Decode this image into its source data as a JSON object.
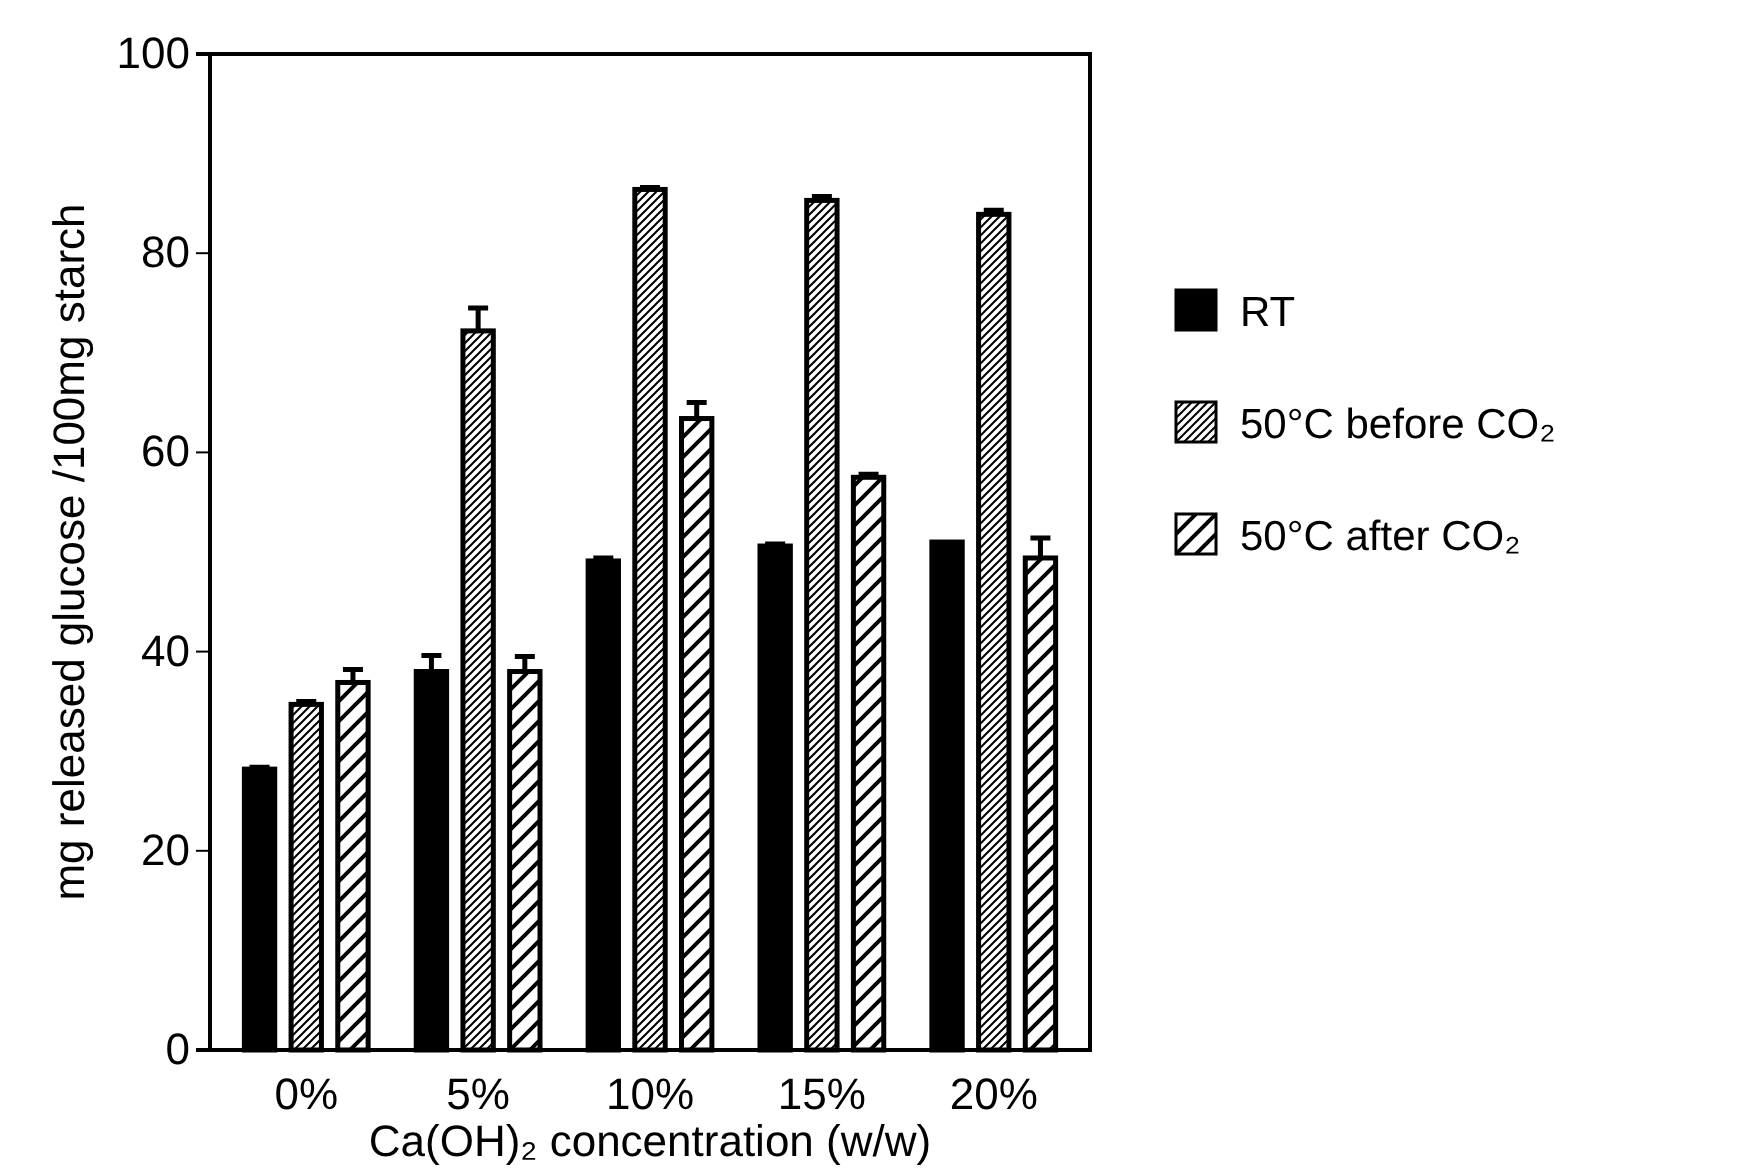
{
  "chart_data": {
    "type": "bar",
    "xlabel": "Ca(OH)₂ concentration (w/w)",
    "ylabel": "mg released glucose /100mg starch",
    "categories": [
      "0%",
      "5%",
      "10%",
      "15%",
      "20%"
    ],
    "series": [
      {
        "name": "RT",
        "color": "#000000",
        "values": [
          28.2,
          38.0,
          49.1,
          50.6,
          51.0
        ],
        "errors": [
          0.2,
          1.6,
          0.3,
          0.2,
          null
        ]
      },
      {
        "name": "50°C before CO₂",
        "color": "#000000",
        "values": [
          34.7,
          72.2,
          86.4,
          85.3,
          83.9
        ],
        "errors": [
          0.3,
          2.3,
          0.2,
          0.4,
          0.4
        ]
      },
      {
        "name": "50°C after CO₂",
        "color": "#000000",
        "values": [
          36.9,
          38.0,
          63.4,
          57.5,
          49.4
        ],
        "errors": [
          1.3,
          1.5,
          1.6,
          0.3,
          2.0
        ]
      }
    ],
    "ylim": [
      0,
      100
    ],
    "yticks": [
      0,
      20,
      40,
      60,
      80,
      100
    ],
    "grid": false,
    "legend": "right"
  }
}
